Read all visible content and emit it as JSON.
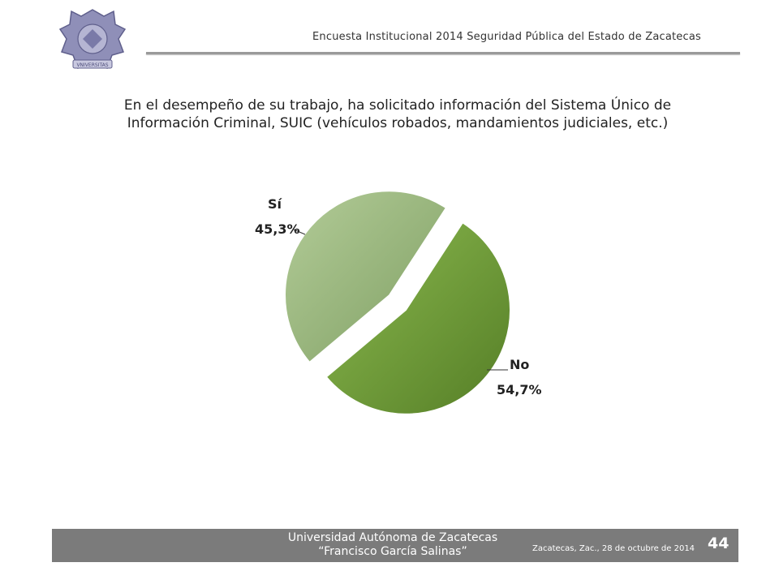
{
  "header": {
    "title": "Encuesta Institucional 2014 Seguridad Pública del Estado de Zacatecas"
  },
  "logo": {
    "icon": "university-seal-icon",
    "banner_text": "VNIVERSITAS"
  },
  "question": {
    "line1": "En el desempeño de su trabajo, ha solicitado información del Sistema Único de",
    "line2": "Información Criminal, SUIC (vehículos robados, mandamientos judiciales, etc.)"
  },
  "chart_data": {
    "type": "pie",
    "title": "",
    "categories": [
      "Sí",
      "No"
    ],
    "values": [
      45.3,
      54.7
    ],
    "labels": [
      "Sí",
      "No"
    ],
    "value_labels": [
      "45,3%",
      "54,7%"
    ],
    "colors": [
      "#9cb97f",
      "#6f9a3a"
    ],
    "exploded": true,
    "legend": "none"
  },
  "footer": {
    "university": "Universidad Autónoma de Zacatecas",
    "university_name": "“Francisco García Salinas”",
    "date": "Zacatecas, Zac., 28 de octubre de 2014",
    "page_number": "44"
  }
}
